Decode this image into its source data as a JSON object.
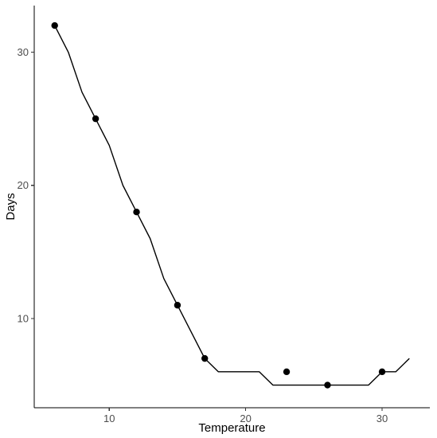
{
  "chart_data": {
    "type": "scatter",
    "title": "",
    "xlabel": "Temperature",
    "ylabel": "Days",
    "xlim": [
      4.5,
      33.5
    ],
    "ylim": [
      3.3,
      33.5
    ],
    "x_ticks": [
      10,
      20,
      30
    ],
    "y_ticks": [
      10,
      20,
      30
    ],
    "grid": false,
    "legend": "none",
    "series": [
      {
        "kind": "points",
        "x": [
          6,
          9,
          12,
          15,
          17,
          23,
          26,
          30
        ],
        "y": [
          32,
          25,
          18,
          11,
          7,
          6,
          5,
          6
        ]
      },
      {
        "kind": "line",
        "x": [
          6,
          7,
          8,
          9,
          10,
          11,
          12,
          13,
          14,
          15,
          16,
          17,
          18,
          19,
          20,
          21,
          22,
          23,
          24,
          25,
          26,
          27,
          28,
          29,
          30,
          31,
          32
        ],
        "y": [
          32,
          30,
          27,
          25,
          23,
          20,
          18,
          16,
          13,
          11,
          9,
          7,
          6,
          6,
          6,
          6,
          5,
          5,
          5,
          5,
          5,
          5,
          5,
          5,
          6,
          6,
          7
        ]
      }
    ],
    "colors": {
      "points": "#000000",
      "line": "#000000",
      "axis": "#000000",
      "tick_text": "#4d4d4d"
    }
  }
}
